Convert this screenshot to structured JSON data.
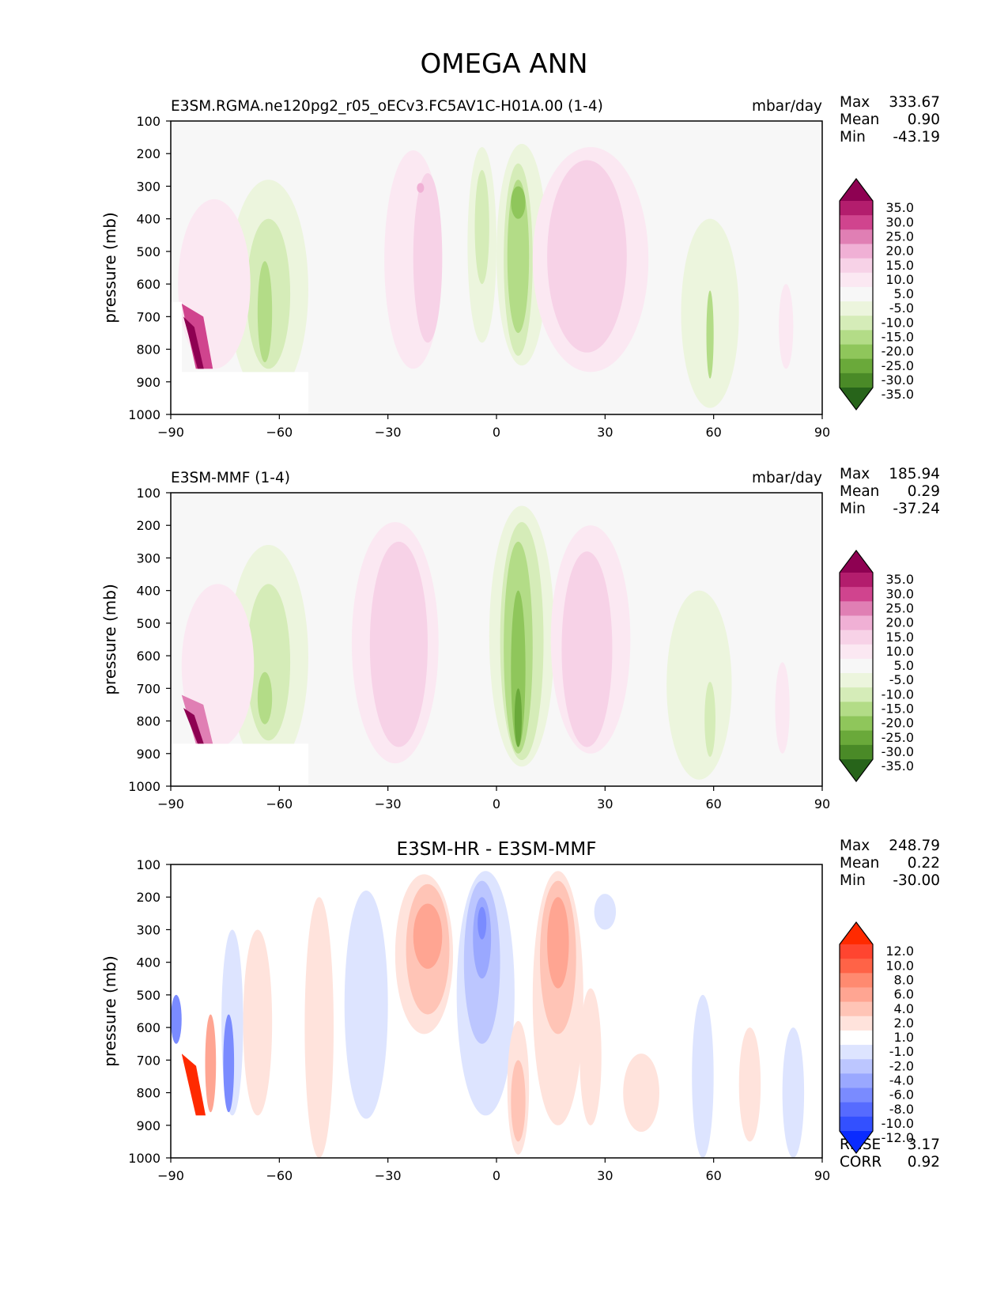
{
  "figure_title": "OMEGA ANN",
  "chart_data": [
    {
      "type": "heatmap",
      "kind": "contourf",
      "title_left": "E3SM.RGMA.ne120pg2_r05_oECv3.FC5AV1C-H01A.00 (1-4)",
      "title_center": "",
      "units": "mbar/day",
      "ylabel": "pressure (mb)",
      "xlim": [
        -90,
        90
      ],
      "ylim": [
        1000,
        100
      ],
      "xticks": [
        -90,
        -60,
        -30,
        0,
        30,
        60,
        90
      ],
      "xtick_labels": [
        "−90",
        "−60",
        "−30",
        "0",
        "30",
        "60",
        "90"
      ],
      "yticks": [
        100,
        200,
        300,
        400,
        500,
        600,
        700,
        800,
        900,
        1000
      ],
      "ytick_labels": [
        "100",
        "200",
        "300",
        "400",
        "500",
        "600",
        "700",
        "800",
        "900",
        "1000"
      ],
      "stats": [
        {
          "label": "Max",
          "value": "333.67"
        },
        {
          "label": "Mean",
          "value": "0.90"
        },
        {
          "label": "Min",
          "value": "-43.19"
        }
      ],
      "colorbar": {
        "levels": [
          "35.0",
          "30.0",
          "25.0",
          "20.0",
          "15.0",
          "10.0",
          "5.0",
          "-5.0",
          "-10.0",
          "-15.0",
          "-20.0",
          "-25.0",
          "-30.0",
          "-35.0"
        ],
        "colors": [
          "#8e0152",
          "#b31d6d",
          "#d0448e",
          "#e07fb4",
          "#f0b0d5",
          "#f7d2e7",
          "#fbe8f2",
          "#f7f7f7",
          "#ecf5dd",
          "#d5ecb8",
          "#b3dc87",
          "#8fc65b",
          "#6aa93a",
          "#4a8a27",
          "#27641a"
        ]
      },
      "blobs": [
        {
          "lat": [
            -23,
            8
          ],
          "p": [
            190,
            860
          ],
          "level": 1,
          "shape": "ellipse"
        },
        {
          "lat": [
            -19,
            4
          ],
          "p": [
            260,
            780
          ],
          "level": 2,
          "shape": "ellipse"
        },
        {
          "lat": [
            -21,
            1
          ],
          "p": [
            290,
            320
          ],
          "level": 3,
          "shape": "ellipse"
        },
        {
          "lat": [
            7,
            7
          ],
          "p": [
            170,
            850
          ],
          "level": -1,
          "shape": "ellipse"
        },
        {
          "lat": [
            6,
            4
          ],
          "p": [
            230,
            820
          ],
          "level": -2,
          "shape": "ellipse"
        },
        {
          "lat": [
            6,
            3
          ],
          "p": [
            280,
            750
          ],
          "level": -3,
          "shape": "ellipse"
        },
        {
          "lat": [
            6,
            2
          ],
          "p": [
            300,
            400
          ],
          "level": -4,
          "shape": "ellipse"
        },
        {
          "lat": [
            -4,
            4
          ],
          "p": [
            180,
            780
          ],
          "level": -1,
          "shape": "ellipse"
        },
        {
          "lat": [
            -4,
            2
          ],
          "p": [
            250,
            600
          ],
          "level": -2,
          "shape": "ellipse"
        },
        {
          "lat": [
            26,
            16
          ],
          "p": [
            180,
            870
          ],
          "level": 1,
          "shape": "ellipse"
        },
        {
          "lat": [
            25,
            11
          ],
          "p": [
            220,
            810
          ],
          "level": 2,
          "shape": "ellipse"
        },
        {
          "lat": [
            -63,
            11
          ],
          "p": [
            280,
            950
          ],
          "level": -1,
          "shape": "ellipse"
        },
        {
          "lat": [
            -63,
            6
          ],
          "p": [
            400,
            860
          ],
          "level": -2,
          "shape": "ellipse"
        },
        {
          "lat": [
            -64,
            2
          ],
          "p": [
            530,
            840
          ],
          "level": -3,
          "shape": "ellipse"
        },
        {
          "lat": [
            59,
            8
          ],
          "p": [
            400,
            980
          ],
          "level": -1,
          "shape": "ellipse"
        },
        {
          "lat": [
            59,
            1
          ],
          "p": [
            620,
            890
          ],
          "level": -3,
          "shape": "ellipse"
        },
        {
          "lat": [
            -78,
            10
          ],
          "p": [
            340,
            860
          ],
          "level": 1,
          "shape": "ellipse"
        },
        {
          "lat": [
            -84,
            3
          ],
          "p": [
            660,
            860
          ],
          "level": 5,
          "shape": "wedge"
        },
        {
          "lat": [
            -85,
            1.5
          ],
          "p": [
            700,
            860
          ],
          "level": 7,
          "shape": "wedge"
        },
        {
          "lat": [
            80,
            2
          ],
          "p": [
            600,
            860
          ],
          "level": 1,
          "shape": "ellipse"
        }
      ]
    },
    {
      "type": "heatmap",
      "kind": "contourf",
      "title_left": "E3SM-MMF (1-4)",
      "title_center": "",
      "units": "mbar/day",
      "ylabel": "pressure (mb)",
      "xlim": [
        -90,
        90
      ],
      "ylim": [
        1000,
        100
      ],
      "xticks": [
        -90,
        -60,
        -30,
        0,
        30,
        60,
        90
      ],
      "xtick_labels": [
        "−90",
        "−60",
        "−30",
        "0",
        "30",
        "60",
        "90"
      ],
      "yticks": [
        100,
        200,
        300,
        400,
        500,
        600,
        700,
        800,
        900,
        1000
      ],
      "ytick_labels": [
        "100",
        "200",
        "300",
        "400",
        "500",
        "600",
        "700",
        "800",
        "900",
        "1000"
      ],
      "stats": [
        {
          "label": "Max",
          "value": "185.94"
        },
        {
          "label": "Mean",
          "value": "0.29"
        },
        {
          "label": "Min",
          "value": "-37.24"
        }
      ],
      "colorbar": {
        "levels": [
          "35.0",
          "30.0",
          "25.0",
          "20.0",
          "15.0",
          "10.0",
          "5.0",
          "-5.0",
          "-10.0",
          "-15.0",
          "-20.0",
          "-25.0",
          "-30.0",
          "-35.0"
        ],
        "colors": [
          "#8e0152",
          "#b31d6d",
          "#d0448e",
          "#e07fb4",
          "#f0b0d5",
          "#f7d2e7",
          "#fbe8f2",
          "#f7f7f7",
          "#ecf5dd",
          "#d5ecb8",
          "#b3dc87",
          "#8fc65b",
          "#6aa93a",
          "#4a8a27",
          "#27641a"
        ]
      },
      "blobs": [
        {
          "lat": [
            -28,
            12
          ],
          "p": [
            190,
            930
          ],
          "level": 1,
          "shape": "ellipse"
        },
        {
          "lat": [
            -27,
            8
          ],
          "p": [
            250,
            880
          ],
          "level": 2,
          "shape": "ellipse"
        },
        {
          "lat": [
            7,
            9
          ],
          "p": [
            140,
            940
          ],
          "level": -1,
          "shape": "ellipse"
        },
        {
          "lat": [
            7,
            6
          ],
          "p": [
            190,
            920
          ],
          "level": -2,
          "shape": "ellipse"
        },
        {
          "lat": [
            6,
            4
          ],
          "p": [
            250,
            900
          ],
          "level": -3,
          "shape": "ellipse"
        },
        {
          "lat": [
            6,
            2
          ],
          "p": [
            400,
            880
          ],
          "level": -4,
          "shape": "ellipse"
        },
        {
          "lat": [
            6,
            1
          ],
          "p": [
            700,
            880
          ],
          "level": -5,
          "shape": "ellipse"
        },
        {
          "lat": [
            26,
            11
          ],
          "p": [
            200,
            900
          ],
          "level": 1,
          "shape": "ellipse"
        },
        {
          "lat": [
            25,
            7
          ],
          "p": [
            280,
            880
          ],
          "level": 2,
          "shape": "ellipse"
        },
        {
          "lat": [
            -63,
            11
          ],
          "p": [
            260,
            950
          ],
          "level": -1,
          "shape": "ellipse"
        },
        {
          "lat": [
            -63,
            6
          ],
          "p": [
            380,
            860
          ],
          "level": -2,
          "shape": "ellipse"
        },
        {
          "lat": [
            -64,
            2
          ],
          "p": [
            650,
            810
          ],
          "level": -3,
          "shape": "ellipse"
        },
        {
          "lat": [
            56,
            9
          ],
          "p": [
            400,
            980
          ],
          "level": -1,
          "shape": "ellipse"
        },
        {
          "lat": [
            59,
            1.5
          ],
          "p": [
            680,
            910
          ],
          "level": -2,
          "shape": "ellipse"
        },
        {
          "lat": [
            -77,
            10
          ],
          "p": [
            380,
            880
          ],
          "level": 1,
          "shape": "ellipse"
        },
        {
          "lat": [
            -84,
            3
          ],
          "p": [
            720,
            870
          ],
          "level": 4,
          "shape": "wedge"
        },
        {
          "lat": [
            -85,
            1.5
          ],
          "p": [
            760,
            870
          ],
          "level": 7,
          "shape": "wedge"
        },
        {
          "lat": [
            79,
            2
          ],
          "p": [
            620,
            900
          ],
          "level": 1,
          "shape": "ellipse"
        }
      ]
    },
    {
      "type": "heatmap",
      "kind": "contourf",
      "title_left": "",
      "title_center": "E3SM-HR - E3SM-MMF",
      "units": "",
      "ylabel": "pressure (mb)",
      "xlim": [
        -90,
        90
      ],
      "ylim": [
        1000,
        100
      ],
      "xticks": [
        -90,
        -60,
        -30,
        0,
        30,
        60,
        90
      ],
      "xtick_labels": [
        "−90",
        "−60",
        "−30",
        "0",
        "30",
        "60",
        "90"
      ],
      "yticks": [
        100,
        200,
        300,
        400,
        500,
        600,
        700,
        800,
        900,
        1000
      ],
      "ytick_labels": [
        "100",
        "200",
        "300",
        "400",
        "500",
        "600",
        "700",
        "800",
        "900",
        "1000"
      ],
      "stats": [
        {
          "label": "Max",
          "value": "248.79"
        },
        {
          "label": "Mean",
          "value": "0.22"
        },
        {
          "label": "Min",
          "value": "-30.00"
        }
      ],
      "extra_stats": [
        {
          "label": "RMSE",
          "value": "3.17"
        },
        {
          "label": "CORR",
          "value": "0.92"
        }
      ],
      "colorbar": {
        "levels": [
          "12.0",
          "10.0",
          "8.0",
          "6.0",
          "4.0",
          "2.0",
          "1.0",
          "-1.0",
          "-2.0",
          "-4.0",
          "-6.0",
          "-8.0",
          "-10.0",
          "-12.0"
        ],
        "colors": [
          "#ff2a00",
          "#ff4530",
          "#ff6347",
          "#ff8a70",
          "#ffa592",
          "#ffc4b6",
          "#ffe3dc",
          "#ffffff",
          "#dde4ff",
          "#bcc6ff",
          "#9aa8ff",
          "#7a8bff",
          "#566bff",
          "#3350ff",
          "#0a2bff"
        ]
      },
      "blobs": [
        {
          "lat": [
            -20,
            8
          ],
          "p": [
            130,
            620
          ],
          "level": 1,
          "shape": "ellipse"
        },
        {
          "lat": [
            -19,
            6
          ],
          "p": [
            160,
            560
          ],
          "level": 2,
          "shape": "ellipse"
        },
        {
          "lat": [
            -19,
            4
          ],
          "p": [
            220,
            420
          ],
          "level": 3,
          "shape": "ellipse"
        },
        {
          "lat": [
            17,
            7
          ],
          "p": [
            120,
            900
          ],
          "level": 1,
          "shape": "ellipse"
        },
        {
          "lat": [
            17,
            5
          ],
          "p": [
            150,
            620
          ],
          "level": 2,
          "shape": "ellipse"
        },
        {
          "lat": [
            17,
            3
          ],
          "p": [
            200,
            480
          ],
          "level": 3,
          "shape": "ellipse"
        },
        {
          "lat": [
            -3,
            8
          ],
          "p": [
            120,
            870
          ],
          "level": -1,
          "shape": "ellipse"
        },
        {
          "lat": [
            -4,
            5
          ],
          "p": [
            150,
            650
          ],
          "level": -2,
          "shape": "ellipse"
        },
        {
          "lat": [
            -4,
            2.5
          ],
          "p": [
            200,
            450
          ],
          "level": -3,
          "shape": "ellipse"
        },
        {
          "lat": [
            -4,
            1.2
          ],
          "p": [
            230,
            330
          ],
          "level": -4,
          "shape": "ellipse"
        },
        {
          "lat": [
            -36,
            6
          ],
          "p": [
            180,
            880
          ],
          "level": -1,
          "shape": "ellipse"
        },
        {
          "lat": [
            -49,
            4
          ],
          "p": [
            200,
            1000
          ],
          "level": 1,
          "shape": "ellipse"
        },
        {
          "lat": [
            6,
            3
          ],
          "p": [
            580,
            990
          ],
          "level": 1,
          "shape": "ellipse"
        },
        {
          "lat": [
            6,
            2
          ],
          "p": [
            700,
            950
          ],
          "level": 2,
          "shape": "ellipse"
        },
        {
          "lat": [
            30,
            3
          ],
          "p": [
            190,
            300
          ],
          "level": -1,
          "shape": "ellipse"
        },
        {
          "lat": [
            26,
            3
          ],
          "p": [
            480,
            900
          ],
          "level": 1,
          "shape": "ellipse"
        },
        {
          "lat": [
            40,
            5
          ],
          "p": [
            680,
            920
          ],
          "level": 1,
          "shape": "ellipse"
        },
        {
          "lat": [
            57,
            3
          ],
          "p": [
            500,
            1000
          ],
          "level": -1,
          "shape": "ellipse"
        },
        {
          "lat": [
            70,
            3
          ],
          "p": [
            600,
            950
          ],
          "level": 1,
          "shape": "ellipse"
        },
        {
          "lat": [
            82,
            3
          ],
          "p": [
            600,
            1000
          ],
          "level": -1,
          "shape": "ellipse"
        },
        {
          "lat": [
            -66,
            4
          ],
          "p": [
            300,
            870
          ],
          "level": 1,
          "shape": "ellipse"
        },
        {
          "lat": [
            -73,
            3
          ],
          "p": [
            300,
            870
          ],
          "level": -1,
          "shape": "ellipse"
        },
        {
          "lat": [
            -74,
            1.5
          ],
          "p": [
            560,
            860
          ],
          "level": -4,
          "shape": "ellipse"
        },
        {
          "lat": [
            -79,
            1.5
          ],
          "p": [
            560,
            860
          ],
          "level": 3,
          "shape": "ellipse"
        },
        {
          "lat": [
            -85,
            2
          ],
          "p": [
            680,
            870
          ],
          "level": 7,
          "shape": "wedge"
        },
        {
          "lat": [
            -88.5,
            1.5
          ],
          "p": [
            500,
            650
          ],
          "level": -4,
          "shape": "ellipse"
        }
      ]
    }
  ]
}
